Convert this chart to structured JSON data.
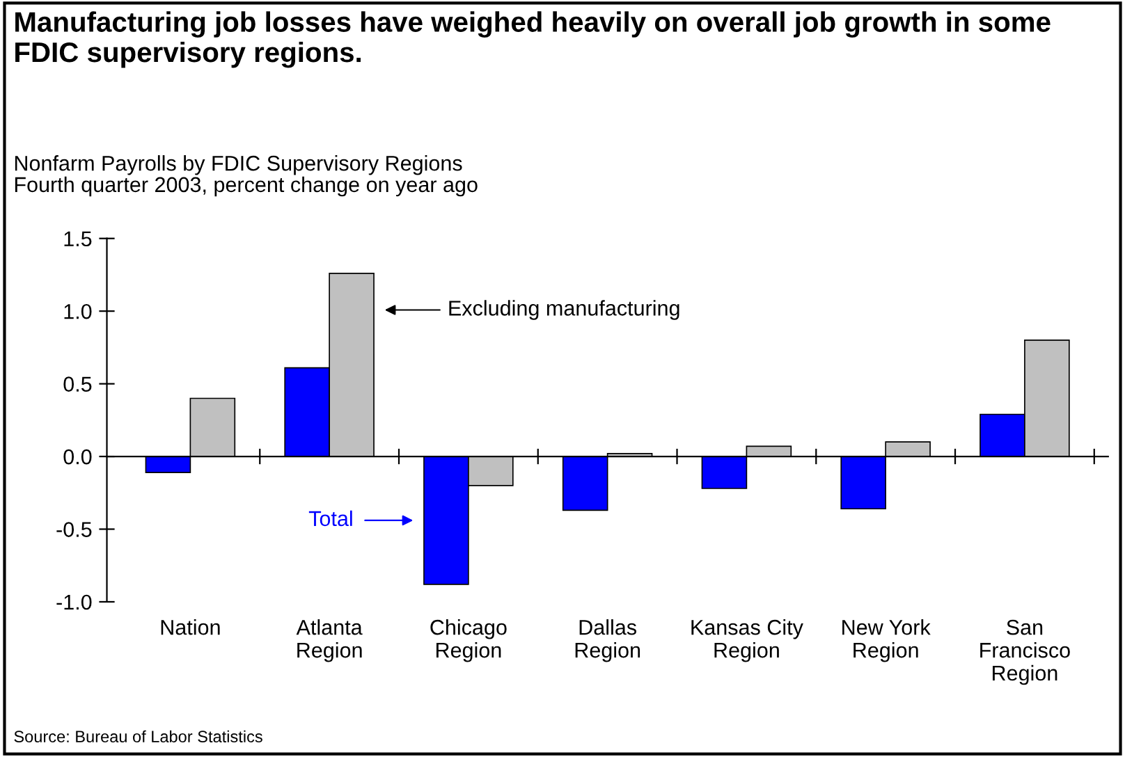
{
  "chart_data": {
    "type": "bar",
    "title": "Manufacturing job losses have weighed heavily on overall job growth in some FDIC supervisory regions.",
    "subtitle": "Nonfarm Payrolls by FDIC Supervisory Regions\nFourth quarter 2003, percent change on year ago",
    "categories": [
      "Nation",
      "Atlanta\nRegion",
      "Chicago\nRegion",
      "Dallas\nRegion",
      "Kansas City\nRegion",
      "New York\nRegion",
      "San\nFrancisco\nRegion"
    ],
    "series": [
      {
        "name": "Total",
        "color": "#0000ff",
        "values": [
          -0.11,
          0.61,
          -0.88,
          -0.37,
          -0.22,
          -0.36,
          0.29
        ]
      },
      {
        "name": "Excluding manufacturing",
        "color": "#c0c0c0",
        "values": [
          0.4,
          1.26,
          -0.2,
          0.02,
          0.07,
          0.1,
          0.8
        ]
      }
    ],
    "annotations": [
      "Source: Bureau of Labor Statistics"
    ],
    "ylim": [
      -1.0,
      1.5
    ],
    "yticks": [
      {
        "value": -1.0,
        "label": "-1.0"
      },
      {
        "value": -0.5,
        "label": "-0.5"
      },
      {
        "value": 0.0,
        "label": "0.0"
      },
      {
        "value": 0.5,
        "label": "0.5"
      },
      {
        "value": 1.0,
        "label": "1.0"
      },
      {
        "value": 1.5,
        "label": "1.5"
      }
    ],
    "legend": "top left"
  }
}
